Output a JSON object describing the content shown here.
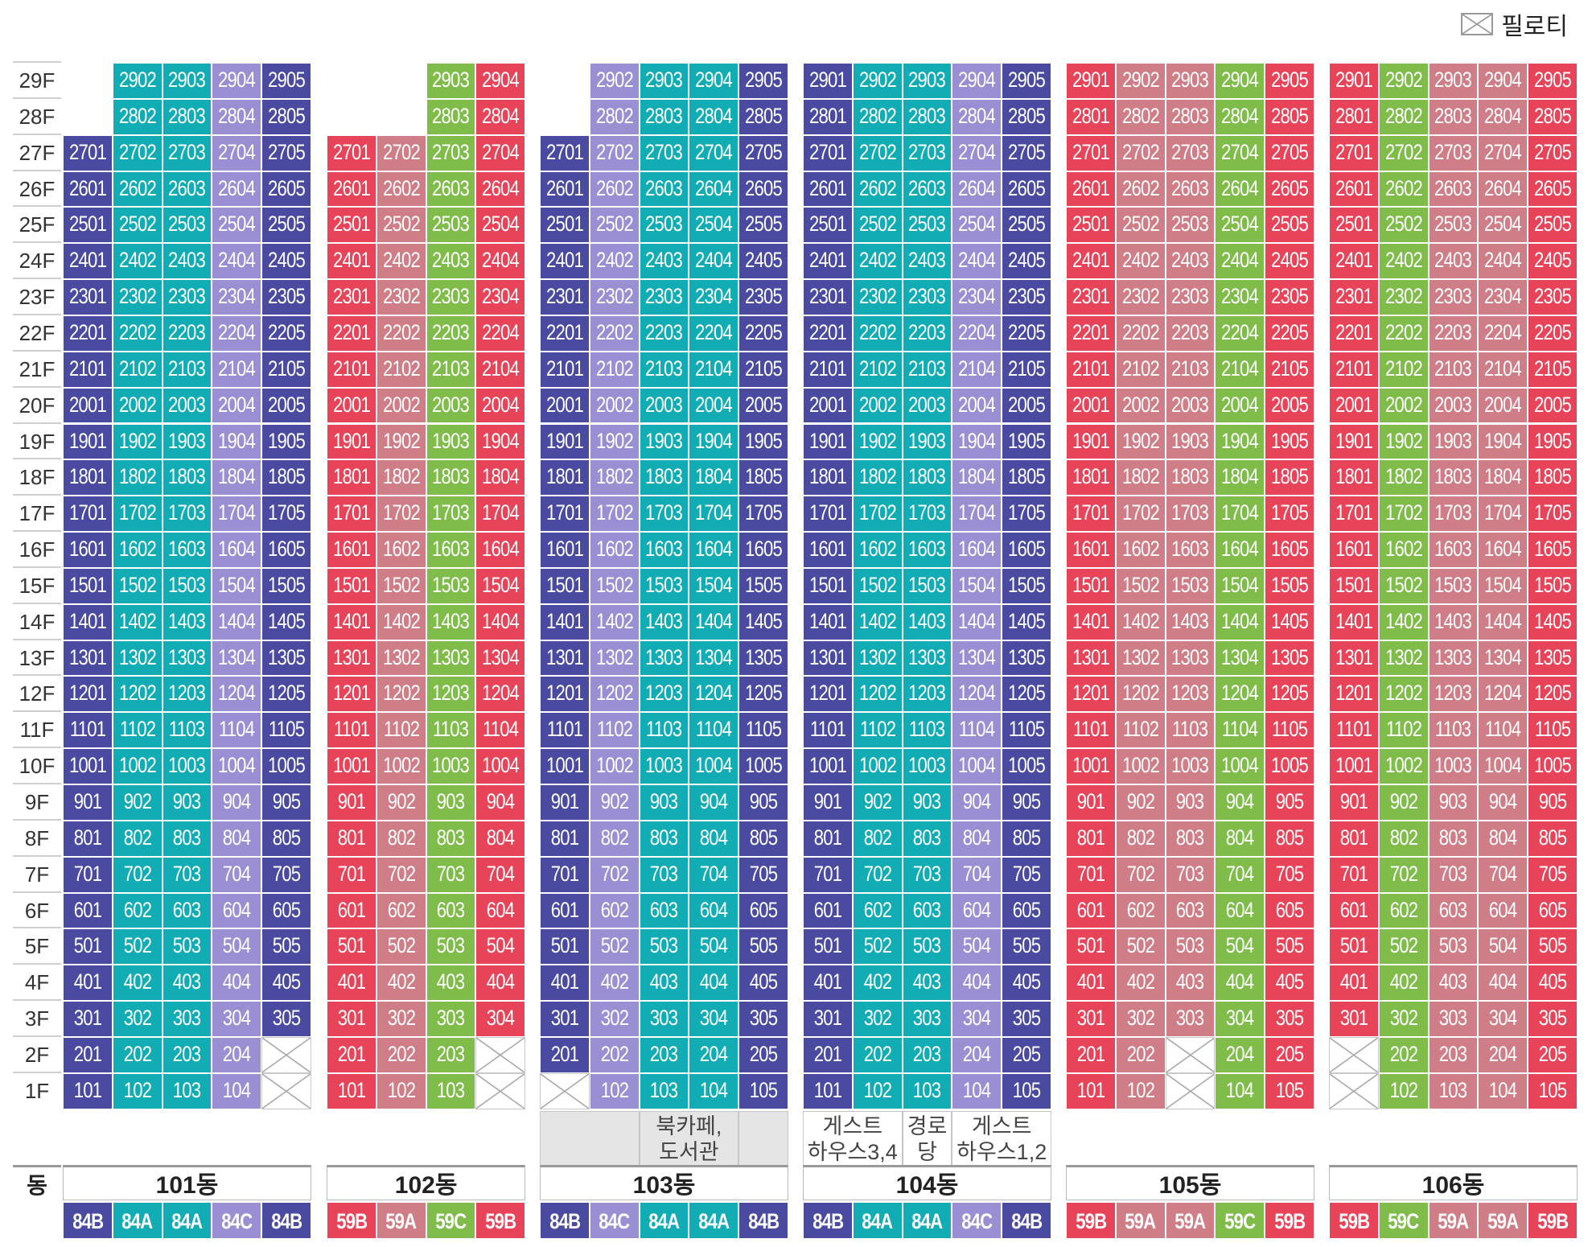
{
  "legend": {
    "label": "필로티",
    "icon": "piloti-x-icon"
  },
  "dong_label": "동",
  "floors": [
    "29F",
    "28F",
    "27F",
    "26F",
    "25F",
    "24F",
    "23F",
    "22F",
    "21F",
    "20F",
    "19F",
    "18F",
    "17F",
    "16F",
    "15F",
    "14F",
    "13F",
    "12F",
    "11F",
    "10F",
    "9F",
    "8F",
    "7F",
    "6F",
    "5F",
    "4F",
    "3F",
    "2F",
    "1F"
  ],
  "colors": {
    "84A": "#12adb4",
    "84B": "#4a4ba0",
    "84C": "#9a8fd3",
    "59A": "#cf7d86",
    "59B": "#e84459",
    "59C": "#7fbc4a"
  },
  "buildings": [
    {
      "name": "101동",
      "types": [
        "84B",
        "84A",
        "84A",
        "84C",
        "84B"
      ],
      "top_floor": [
        29,
        29,
        29,
        29,
        29
      ],
      "present_top": [
        [
          29,
          27,
          28
        ],
        [
          29
        ],
        [
          29
        ],
        [
          29
        ],
        [
          29
        ]
      ],
      "missing": {
        "0": [
          29,
          28
        ],
        "4": [
          2,
          1
        ]
      },
      "facilities": []
    },
    {
      "name": "102동",
      "types": [
        "59B",
        "59A",
        "59C",
        "59B"
      ],
      "missing": {
        "0": [
          29,
          28
        ],
        "1": [
          29,
          28
        ],
        "3": [
          2,
          1
        ]
      },
      "facilities": []
    },
    {
      "name": "103동",
      "types": [
        "84B",
        "84C",
        "84A",
        "84A",
        "84B"
      ],
      "missing": {
        "0": [
          29,
          28,
          1
        ]
      },
      "facilities": [
        {
          "label": "",
          "start": 0,
          "span": 2,
          "style": "grey"
        },
        {
          "label": "북카페,\n도서관",
          "start": 2,
          "span": 2,
          "style": "grey"
        },
        {
          "label": "",
          "start": 4,
          "span": 1,
          "style": "grey"
        }
      ]
    },
    {
      "name": "104동",
      "types": [
        "84B",
        "84A",
        "84A",
        "84C",
        "84B"
      ],
      "missing": {},
      "facilities": [
        {
          "label": "게스트\n하우스3,4",
          "start": 0,
          "span": 2,
          "style": "light"
        },
        {
          "label": "경로당",
          "start": 2,
          "span": 1,
          "style": "light"
        },
        {
          "label": "게스트\n하우스1,2",
          "start": 3,
          "span": 2,
          "style": "light"
        }
      ]
    },
    {
      "name": "105동",
      "types": [
        "59B",
        "59A",
        "59A",
        "59C",
        "59B"
      ],
      "missing": {
        "2": [
          2,
          1
        ]
      },
      "facilities": []
    },
    {
      "name": "106동",
      "types": [
        "59B",
        "59C",
        "59A",
        "59A",
        "59B"
      ],
      "missing": {
        "0": [
          2,
          1
        ]
      },
      "facilities": []
    }
  ]
}
